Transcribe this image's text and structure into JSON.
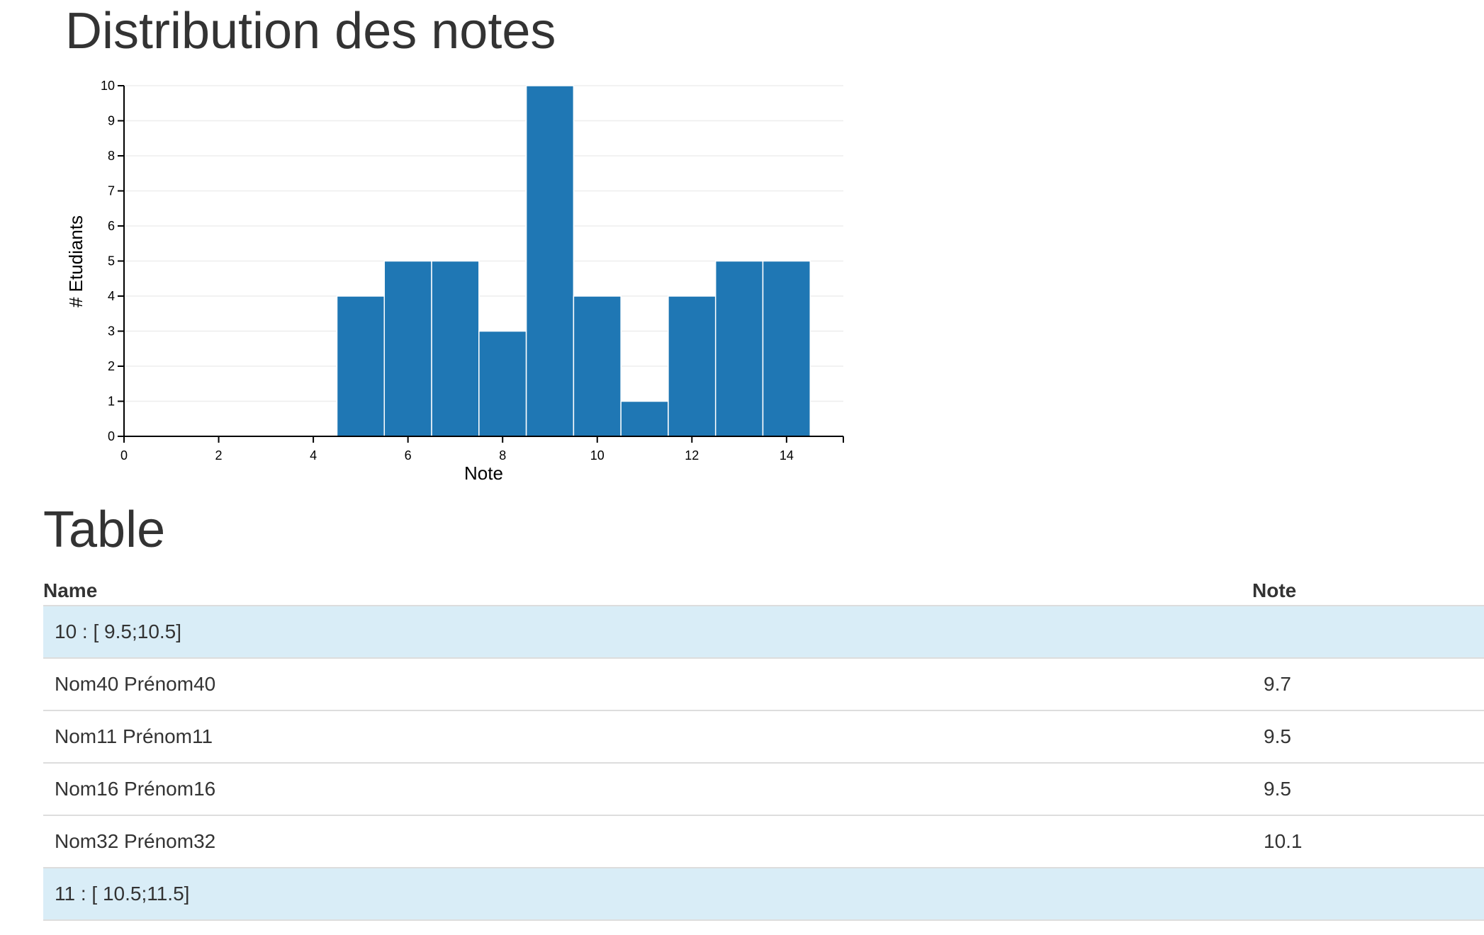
{
  "page": {
    "title": "Distribution des notes",
    "table_title": "Table"
  },
  "colors": {
    "bar": "#1f77b4",
    "group_row": "#d9edf7",
    "text": "#333333"
  },
  "chart_data": {
    "type": "bar",
    "title": "",
    "xlabel": "Note",
    "ylabel": "# Etudiants",
    "x": [
      5,
      6,
      7,
      8,
      9,
      10,
      11,
      12,
      13,
      14
    ],
    "values": [
      4,
      5,
      5,
      3,
      10,
      4,
      1,
      4,
      5,
      5
    ],
    "bin_width": 1,
    "xlim": [
      0,
      15.2
    ],
    "ylim": [
      0,
      10
    ],
    "xticks": [
      0,
      2,
      4,
      6,
      8,
      10,
      12,
      14
    ],
    "yticks": [
      0,
      1,
      2,
      3,
      4,
      5,
      6,
      7,
      8,
      9,
      10
    ],
    "grid": true,
    "legend": "none"
  },
  "table": {
    "headers": [
      "Name",
      "Note"
    ],
    "rows": [
      {
        "type": "group",
        "label": "10 : [ 9.5;10.5]"
      },
      {
        "type": "student",
        "name": "Nom40 Prénom40",
        "note": "9.7"
      },
      {
        "type": "student",
        "name": "Nom11 Prénom11",
        "note": "9.5"
      },
      {
        "type": "student",
        "name": "Nom16 Prénom16",
        "note": "9.5"
      },
      {
        "type": "student",
        "name": "Nom32 Prénom32",
        "note": "10.1"
      },
      {
        "type": "group",
        "label": "11 : [ 10.5;11.5]"
      }
    ]
  }
}
